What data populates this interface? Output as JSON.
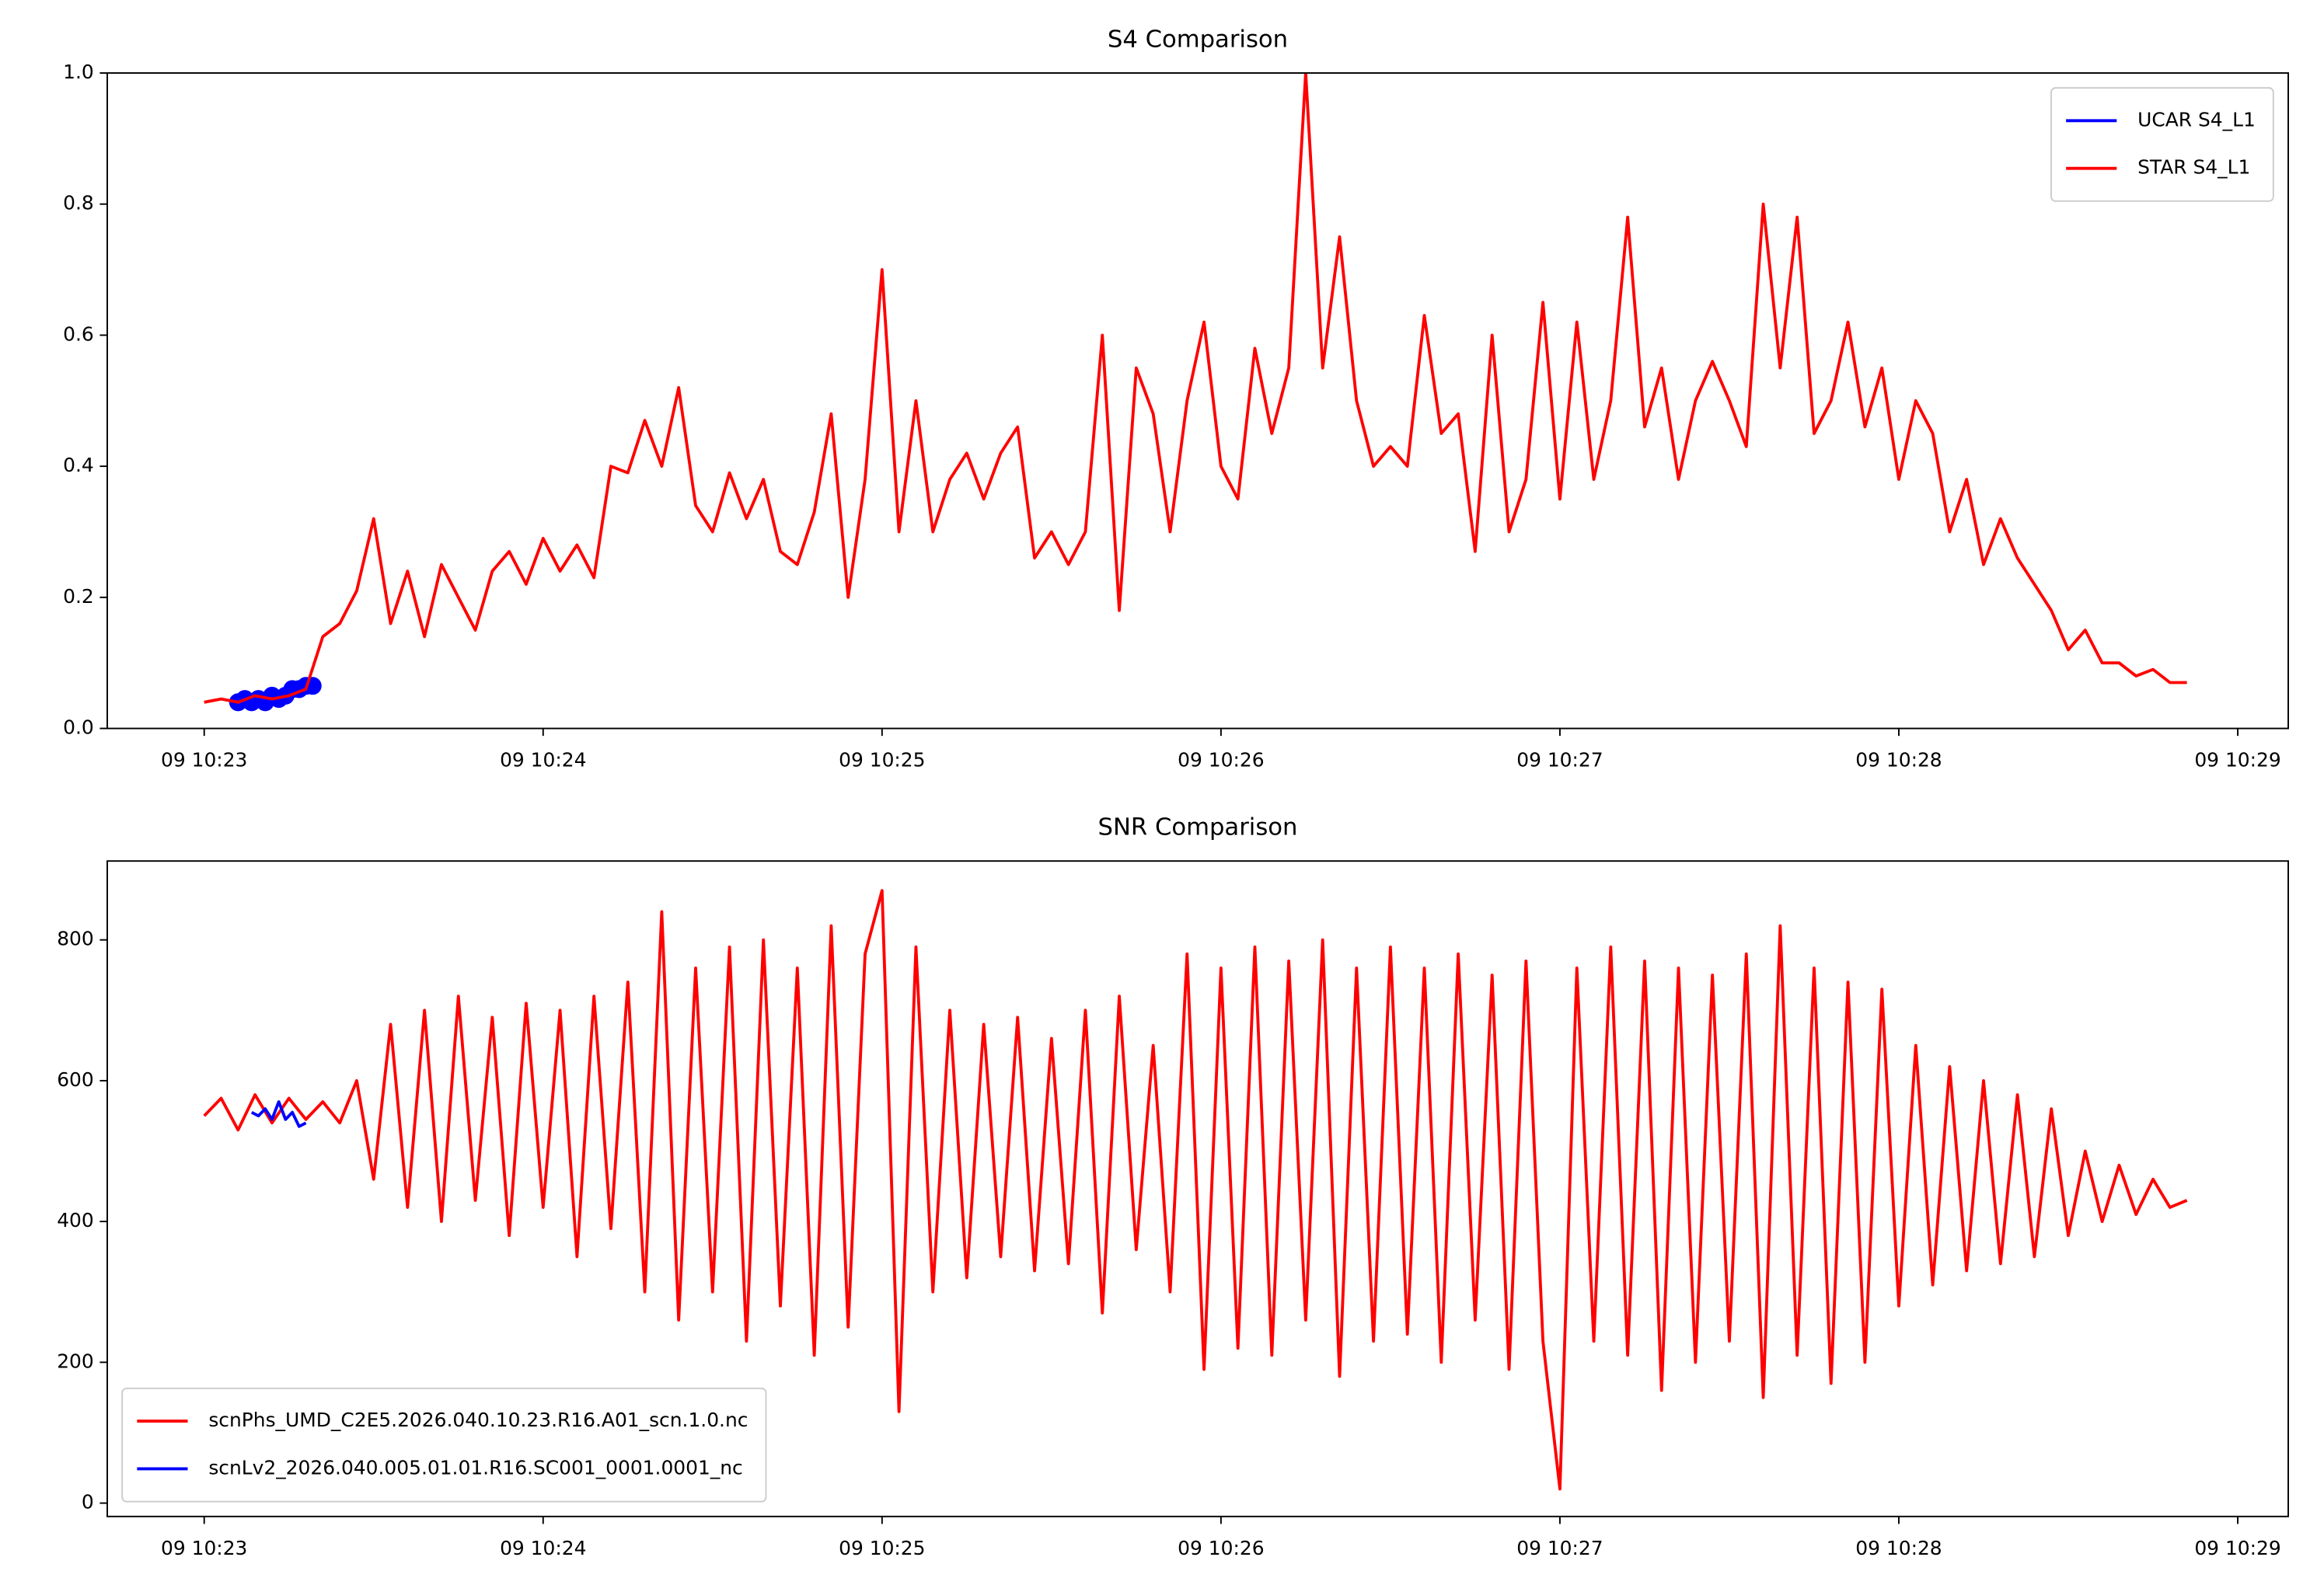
{
  "chart_data": [
    {
      "type": "line",
      "title": "S4 Comparison",
      "legend": "upper right",
      "xlim": [
        22.714,
        29.149
      ],
      "ylim": [
        0,
        1
      ],
      "xticks": [
        {
          "value": 23,
          "label": "09 10:23"
        },
        {
          "value": 24,
          "label": "09 10:24"
        },
        {
          "value": 25,
          "label": "09 10:25"
        },
        {
          "value": 26,
          "label": "09 10:26"
        },
        {
          "value": 27,
          "label": "09 10:27"
        },
        {
          "value": 28,
          "label": "09 10:28"
        },
        {
          "value": 29,
          "label": "09 10:29"
        }
      ],
      "yticks": [
        {
          "value": 0,
          "label": "0.0"
        },
        {
          "value": 0.2,
          "label": "0.2"
        },
        {
          "value": 0.4,
          "label": "0.4"
        },
        {
          "value": 0.6,
          "label": "0.6"
        },
        {
          "value": 0.8,
          "label": "0.8"
        },
        {
          "value": 1,
          "label": "1.0"
        }
      ],
      "series": [
        {
          "name": "UCAR S4_L1",
          "color": "#0000ff",
          "marker": "o",
          "x": [
            23.1,
            23.12,
            23.14,
            23.16,
            23.18,
            23.2,
            23.22,
            23.24,
            23.26,
            23.28,
            23.3,
            23.32
          ],
          "values": [
            0.04,
            0.045,
            0.04,
            0.045,
            0.04,
            0.05,
            0.045,
            0.05,
            0.06,
            0.06,
            0.065,
            0.065
          ]
        },
        {
          "name": "STAR S4_L1",
          "color": "#ff0000",
          "x": [
            23,
            23.05,
            23.1,
            23.15,
            23.2,
            23.25,
            23.3,
            23.35,
            23.4,
            23.45,
            23.5,
            23.55,
            23.6,
            23.65,
            23.7,
            23.75,
            23.8,
            23.85,
            23.9,
            23.95,
            24,
            24.05,
            24.1,
            24.15,
            24.2,
            24.25,
            24.3,
            24.35,
            24.4,
            24.45,
            24.5,
            24.55,
            24.6,
            24.65,
            24.7,
            24.75,
            24.8,
            24.85,
            24.9,
            24.95,
            25,
            25.05,
            25.1,
            25.15,
            25.2,
            25.25,
            25.3,
            25.35,
            25.4,
            25.45,
            25.5,
            25.55,
            25.6,
            25.65,
            25.7,
            25.75,
            25.8,
            25.85,
            25.9,
            25.95,
            26,
            26.05,
            26.1,
            26.15,
            26.2,
            26.25,
            26.3,
            26.35,
            26.4,
            26.45,
            26.5,
            26.55,
            26.6,
            26.65,
            26.7,
            26.75,
            26.8,
            26.85,
            26.9,
            26.95,
            27,
            27.05,
            27.1,
            27.15,
            27.2,
            27.25,
            27.3,
            27.35,
            27.4,
            27.45,
            27.5,
            27.55,
            27.6,
            27.65,
            27.7,
            27.75,
            27.8,
            27.85,
            27.9,
            27.95,
            28,
            28.05,
            28.1,
            28.15,
            28.2,
            28.25,
            28.3,
            28.35,
            28.4,
            28.45,
            28.5,
            28.55,
            28.6,
            28.65,
            28.7,
            28.75,
            28.8,
            28.85
          ],
          "values": [
            0.04,
            0.045,
            0.04,
            0.05,
            0.045,
            0.05,
            0.06,
            0.14,
            0.16,
            0.21,
            0.32,
            0.16,
            0.24,
            0.14,
            0.25,
            0.2,
            0.15,
            0.24,
            0.27,
            0.22,
            0.29,
            0.24,
            0.28,
            0.23,
            0.4,
            0.39,
            0.47,
            0.4,
            0.52,
            0.34,
            0.3,
            0.39,
            0.32,
            0.38,
            0.27,
            0.25,
            0.33,
            0.48,
            0.2,
            0.38,
            0.7,
            0.3,
            0.5,
            0.3,
            0.38,
            0.42,
            0.35,
            0.42,
            0.46,
            0.26,
            0.3,
            0.25,
            0.3,
            0.6,
            0.18,
            0.55,
            0.48,
            0.3,
            0.5,
            0.62,
            0.4,
            0.35,
            0.58,
            0.45,
            0.55,
            1.0,
            0.55,
            0.75,
            0.5,
            0.4,
            0.43,
            0.4,
            0.63,
            0.45,
            0.48,
            0.27,
            0.6,
            0.3,
            0.38,
            0.65,
            0.35,
            0.62,
            0.38,
            0.5,
            0.78,
            0.46,
            0.55,
            0.38,
            0.5,
            0.56,
            0.5,
            0.43,
            0.8,
            0.55,
            0.78,
            0.45,
            0.5,
            0.62,
            0.46,
            0.55,
            0.38,
            0.5,
            0.45,
            0.3,
            0.38,
            0.25,
            0.32,
            0.26,
            0.22,
            0.18,
            0.12,
            0.15,
            0.1,
            0.1,
            0.08,
            0.09,
            0.07,
            0.07
          ]
        }
      ]
    },
    {
      "type": "line",
      "title": "SNR Comparison",
      "legend": "lower left",
      "xlim": [
        22.714,
        29.149
      ],
      "ylim": [
        -19,
        912
      ],
      "xticks": [
        {
          "value": 23,
          "label": "09 10:23"
        },
        {
          "value": 24,
          "label": "09 10:24"
        },
        {
          "value": 25,
          "label": "09 10:25"
        },
        {
          "value": 26,
          "label": "09 10:26"
        },
        {
          "value": 27,
          "label": "09 10:27"
        },
        {
          "value": 28,
          "label": "09 10:28"
        },
        {
          "value": 29,
          "label": "09 10:29"
        }
      ],
      "yticks": [
        0,
        200,
        400,
        600,
        800
      ],
      "series": [
        {
          "name": "scnPhs_UMD_C2E5.2026.040.10.23.R16.A01_scn.1.0.nc",
          "color": "#ff0000",
          "x": [
            23,
            23.05,
            23.1,
            23.15,
            23.2,
            23.25,
            23.3,
            23.35,
            23.4,
            23.45,
            23.5,
            23.55,
            23.6,
            23.65,
            23.7,
            23.75,
            23.8,
            23.85,
            23.9,
            23.95,
            24,
            24.05,
            24.1,
            24.15,
            24.2,
            24.25,
            24.3,
            24.35,
            24.4,
            24.45,
            24.5,
            24.55,
            24.6,
            24.65,
            24.7,
            24.75,
            24.8,
            24.85,
            24.9,
            24.95,
            25,
            25.05,
            25.1,
            25.15,
            25.2,
            25.25,
            25.3,
            25.35,
            25.4,
            25.45,
            25.5,
            25.55,
            25.6,
            25.65,
            25.7,
            25.75,
            25.8,
            25.85,
            25.9,
            25.95,
            26,
            26.05,
            26.1,
            26.15,
            26.2,
            26.25,
            26.3,
            26.35,
            26.4,
            26.45,
            26.5,
            26.55,
            26.6,
            26.65,
            26.7,
            26.75,
            26.8,
            26.85,
            26.9,
            26.95,
            27,
            27.05,
            27.1,
            27.15,
            27.2,
            27.25,
            27.3,
            27.35,
            27.4,
            27.45,
            27.5,
            27.55,
            27.6,
            27.65,
            27.7,
            27.75,
            27.8,
            27.85,
            27.9,
            27.95,
            28,
            28.05,
            28.1,
            28.15,
            28.2,
            28.25,
            28.3,
            28.35,
            28.4,
            28.45,
            28.5,
            28.55,
            28.6,
            28.65,
            28.7,
            28.75,
            28.8,
            28.85
          ],
          "values": [
            550,
            575,
            530,
            580,
            540,
            575,
            545,
            570,
            540,
            600,
            460,
            680,
            420,
            700,
            400,
            720,
            430,
            690,
            380,
            710,
            420,
            700,
            350,
            720,
            390,
            740,
            300,
            840,
            260,
            760,
            300,
            790,
            230,
            800,
            280,
            760,
            210,
            820,
            250,
            780,
            870,
            130,
            790,
            300,
            700,
            320,
            680,
            350,
            690,
            330,
            660,
            340,
            700,
            270,
            720,
            360,
            650,
            300,
            780,
            190,
            760,
            220,
            790,
            210,
            770,
            260,
            800,
            180,
            760,
            230,
            790,
            240,
            760,
            200,
            780,
            260,
            750,
            190,
            770,
            230,
            20,
            760,
            230,
            790,
            210,
            770,
            160,
            760,
            200,
            750,
            230,
            780,
            150,
            820,
            210,
            760,
            170,
            740,
            200,
            730,
            280,
            650,
            310,
            620,
            330,
            600,
            340,
            580,
            350,
            560,
            380,
            500,
            400,
            480,
            410,
            460,
            420,
            430
          ]
        },
        {
          "name": "scnLv2_2026.040.005.01.01.R16.SC001_0001.0001_nc",
          "color": "#0000ff",
          "x": [
            23.14,
            23.16,
            23.18,
            23.2,
            23.22,
            23.24,
            23.26,
            23.28,
            23.3
          ],
          "values": [
            555,
            550,
            560,
            545,
            570,
            545,
            555,
            535,
            540
          ]
        }
      ]
    }
  ]
}
